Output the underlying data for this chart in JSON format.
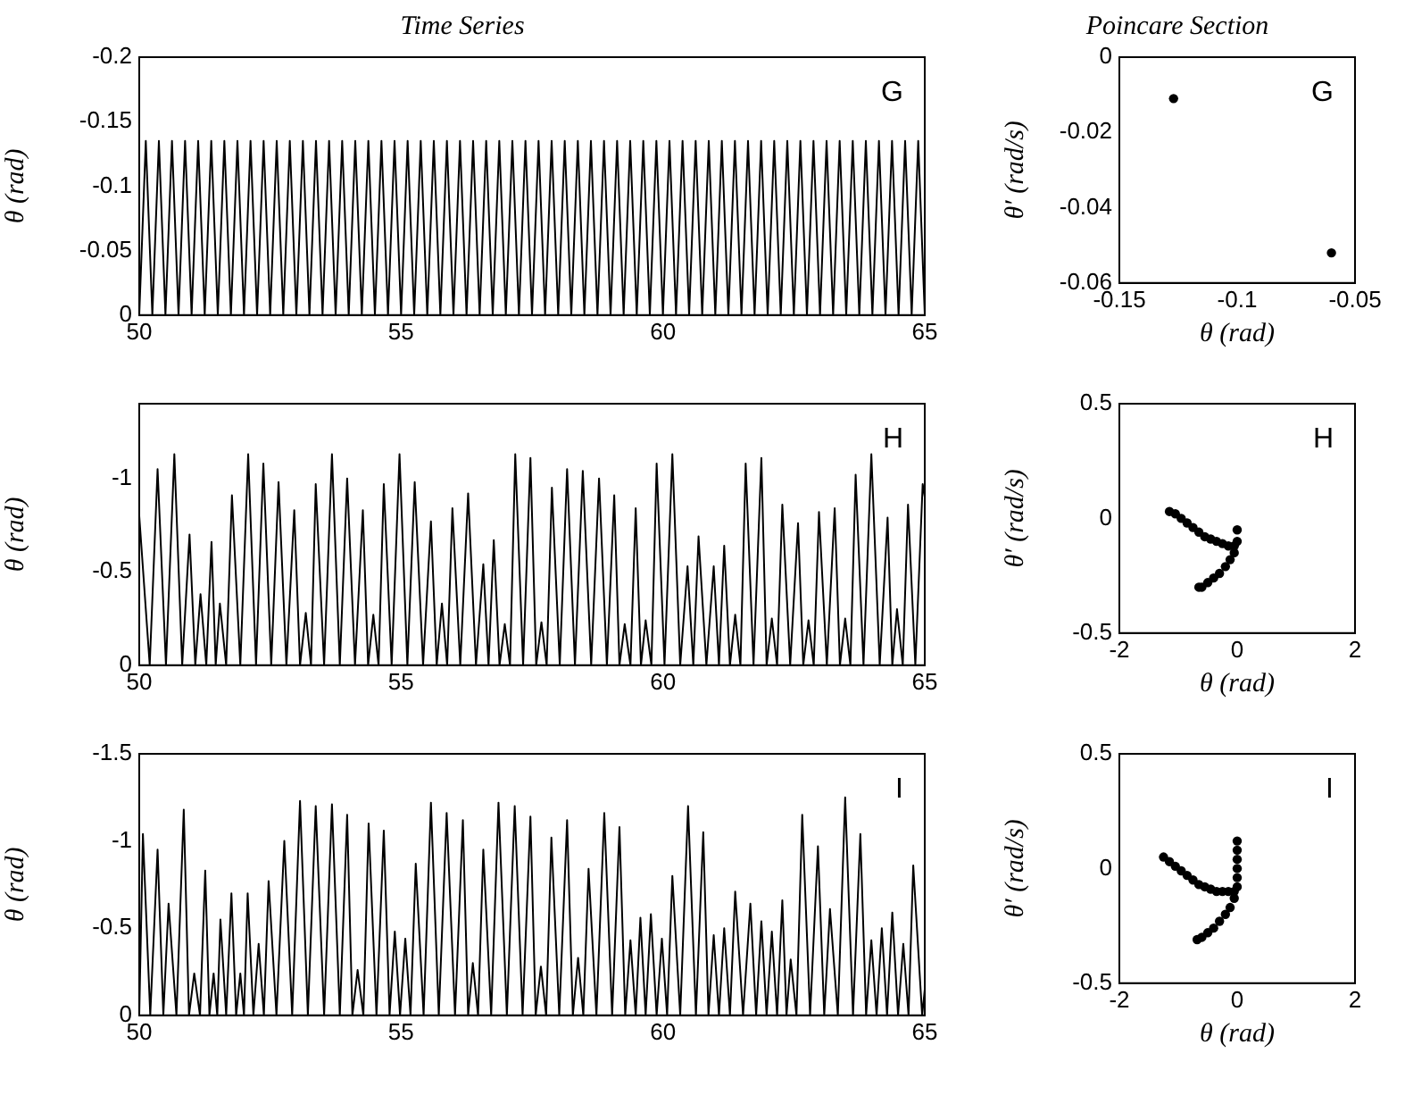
{
  "chart_data": [
    {
      "type": "line",
      "title": "Time Series",
      "ylabel": "θ (rad)",
      "annotations": [
        "G"
      ],
      "marker": "none",
      "line_style": "solid",
      "grid": false,
      "legend": false,
      "color": "#000000",
      "x": [
        50,
        50.125,
        50.25,
        50.375,
        50.5,
        50.625,
        50.75,
        50.875,
        51,
        51.125,
        51.25,
        51.375,
        51.5,
        51.625,
        51.75,
        51.875,
        52,
        52.125,
        52.25,
        52.375,
        52.5,
        52.625,
        52.75,
        52.875,
        53,
        53.125,
        53.25,
        53.375,
        53.5,
        53.625,
        53.75,
        53.875,
        54,
        54.125,
        54.25,
        54.375,
        54.5,
        54.625,
        54.75,
        54.875,
        55,
        55.125,
        55.25,
        55.375,
        55.5,
        55.625,
        55.75,
        55.875,
        56,
        56.125,
        56.25,
        56.375,
        56.5,
        56.625,
        56.75,
        56.875,
        57,
        57.125,
        57.25,
        57.375,
        57.5,
        57.625,
        57.75,
        57.875,
        58,
        58.125,
        58.25,
        58.375,
        58.5,
        58.625,
        58.75,
        58.875,
        59,
        59.125,
        59.25,
        59.375,
        59.5,
        59.625,
        59.75,
        59.875,
        60,
        60.125,
        60.25,
        60.375,
        60.5,
        60.625,
        60.75,
        60.875,
        61,
        61.125,
        61.25,
        61.375,
        61.5,
        61.625,
        61.75,
        61.875,
        62,
        62.125,
        62.25,
        62.375,
        62.5,
        62.625,
        62.75,
        62.875,
        63,
        63.125,
        63.25,
        63.375,
        63.5,
        63.625,
        63.75,
        63.875,
        64,
        64.125,
        64.25,
        64.375,
        64.5,
        64.625,
        64.75,
        64.875,
        65
      ],
      "values": [
        0,
        -0.135,
        0,
        -0.135,
        0,
        -0.135,
        0,
        -0.135,
        0,
        -0.135,
        0,
        -0.135,
        0,
        -0.135,
        0,
        -0.135,
        0,
        -0.135,
        0,
        -0.135,
        0,
        -0.135,
        0,
        -0.135,
        0,
        -0.135,
        0,
        -0.135,
        0,
        -0.135,
        0,
        -0.135,
        0,
        -0.135,
        0,
        -0.135,
        0,
        -0.135,
        0,
        -0.135,
        0,
        -0.135,
        0,
        -0.135,
        0,
        -0.135,
        0,
        -0.135,
        0,
        -0.135,
        0,
        -0.135,
        0,
        -0.135,
        0,
        -0.135,
        0,
        -0.135,
        0,
        -0.135,
        0,
        -0.135,
        0,
        -0.135,
        0,
        -0.135,
        0,
        -0.135,
        0,
        -0.135,
        0,
        -0.135,
        0,
        -0.135,
        0,
        -0.135,
        0,
        -0.135,
        0,
        -0.135,
        0,
        -0.135,
        0,
        -0.135,
        0,
        -0.135,
        0,
        -0.135,
        0,
        -0.135,
        0,
        -0.135,
        0,
        -0.135,
        0,
        -0.135,
        0,
        -0.135,
        0,
        -0.135,
        0,
        -0.135,
        0,
        -0.135,
        0,
        -0.135,
        0,
        -0.135,
        0,
        -0.135,
        0,
        -0.135,
        0,
        -0.135,
        0,
        -0.135,
        0,
        -0.135,
        0,
        -0.135,
        0
      ],
      "xlim": [
        50,
        65
      ],
      "xticks": [
        50,
        55,
        60,
        65
      ],
      "ylim": [
        0,
        -0.2
      ],
      "yticks": [
        -0.2,
        -0.15,
        -0.1,
        -0.05,
        0
      ]
    },
    {
      "type": "scatter",
      "title": "Poincare Section",
      "xlabel": "θ (rad)",
      "ylabel": "θ′ (rad/s)",
      "annotations": [
        "G"
      ],
      "marker": "circle",
      "grid": false,
      "legend": false,
      "color": "#000000",
      "x": [
        -0.127,
        -0.06
      ],
      "values": [
        -0.011,
        -0.052
      ],
      "xlim": [
        -0.15,
        -0.05
      ],
      "xticks": [
        -0.15,
        -0.1,
        -0.05
      ],
      "ylim": [
        -0.06,
        0
      ],
      "yticks": [
        -0.06,
        -0.04,
        -0.02,
        0
      ]
    },
    {
      "type": "line",
      "ylabel": "θ (rad)",
      "annotations": [
        "H"
      ],
      "marker": "none",
      "line_style": "solid",
      "grid": false,
      "legend": false,
      "color": "#000000",
      "x": [
        50,
        50.2,
        50.35,
        50.51,
        50.67,
        50.82,
        50.96,
        51.07,
        51.17,
        51.28,
        51.38,
        51.46,
        51.54,
        51.66,
        51.77,
        51.93,
        52.08,
        52.23,
        52.37,
        52.52,
        52.66,
        52.81,
        52.96,
        53.07,
        53.18,
        53.28,
        53.37,
        53.53,
        53.68,
        53.83,
        53.97,
        54.12,
        54.27,
        54.37,
        54.47,
        54.57,
        54.67,
        54.82,
        54.97,
        55.12,
        55.26,
        55.42,
        55.57,
        55.68,
        55.78,
        55.88,
        55.98,
        56.13,
        56.28,
        56.43,
        56.57,
        56.67,
        56.77,
        56.88,
        56.98,
        57.08,
        57.18,
        57.33,
        57.47,
        57.58,
        57.68,
        57.78,
        57.88,
        58.03,
        58.17,
        58.32,
        58.47,
        58.63,
        58.78,
        58.93,
        59.07,
        59.17,
        59.27,
        59.38,
        59.48,
        59.58,
        59.67,
        59.78,
        59.88,
        60.03,
        60.18,
        60.33,
        60.47,
        60.58,
        60.68,
        60.83,
        60.97,
        61.07,
        61.17,
        61.28,
        61.38,
        61.48,
        61.58,
        61.73,
        61.88,
        61.98,
        62.08,
        62.18,
        62.28,
        62.43,
        62.58,
        62.68,
        62.78,
        62.88,
        62.98,
        63.13,
        63.28,
        63.38,
        63.48,
        63.58,
        63.68,
        63.83,
        63.98,
        64.14,
        64.29,
        64.38,
        64.47,
        64.58,
        64.68,
        64.82,
        64.96,
        65
      ],
      "values": [
        -0.8,
        0,
        -1.05,
        0,
        -1.13,
        0,
        -0.7,
        0,
        -0.38,
        0,
        -0.66,
        0,
        -0.33,
        0,
        -0.91,
        0,
        -1.13,
        0,
        -1.08,
        0,
        -0.98,
        0,
        -0.83,
        0,
        -0.28,
        0,
        -0.97,
        0,
        -1.13,
        0,
        -1.0,
        0,
        -0.83,
        0,
        -0.27,
        0,
        -0.97,
        0,
        -1.13,
        0,
        -0.98,
        0,
        -0.77,
        0,
        -0.33,
        0,
        -0.84,
        0,
        -0.92,
        0,
        -0.54,
        0,
        -0.67,
        0,
        -0.22,
        0,
        -1.13,
        0,
        -1.11,
        0,
        -0.23,
        0,
        -0.95,
        0,
        -1.05,
        0,
        -1.04,
        0,
        -1.0,
        0,
        -0.91,
        0,
        -0.22,
        0,
        -0.84,
        0,
        -0.24,
        0,
        -1.08,
        0,
        -1.13,
        0,
        -0.53,
        0,
        -0.69,
        0,
        -0.53,
        0,
        -0.64,
        0,
        -0.27,
        0,
        -1.08,
        0,
        -1.11,
        0,
        -0.25,
        0,
        -0.86,
        0,
        -0.76,
        0,
        -0.24,
        0,
        -0.82,
        0,
        -0.84,
        0,
        -0.25,
        0,
        -1.02,
        0,
        -1.13,
        0,
        -0.79,
        0,
        -0.3,
        0,
        -0.86,
        0,
        -0.97,
        -0.9
      ],
      "xlim": [
        50,
        65
      ],
      "xticks": [
        50,
        55,
        60,
        65
      ],
      "ylim": [
        0,
        -1.4
      ],
      "yticks": [
        -1,
        -0.5,
        0
      ]
    },
    {
      "type": "scatter",
      "xlabel": "θ (rad)",
      "ylabel": "θ′ (rad/s)",
      "annotations": [
        "H"
      ],
      "marker": "circle",
      "grid": false,
      "legend": false,
      "color": "#000000",
      "x": [
        -1.15,
        -1.05,
        -0.95,
        -0.85,
        -0.75,
        -0.65,
        -0.55,
        -0.45,
        -0.35,
        -0.25,
        -0.15,
        -0.05,
        0,
        0,
        -0.05,
        -0.12,
        -0.2,
        -0.3,
        -0.4,
        -0.5,
        -0.6,
        -0.65
      ],
      "values": [
        0.03,
        0.02,
        0,
        -0.02,
        -0.04,
        -0.06,
        -0.08,
        -0.09,
        -0.1,
        -0.11,
        -0.12,
        -0.12,
        -0.1,
        -0.05,
        -0.15,
        -0.18,
        -0.21,
        -0.24,
        -0.26,
        -0.28,
        -0.3,
        -0.3
      ],
      "xlim": [
        -2,
        2
      ],
      "xticks": [
        -2,
        0,
        2
      ],
      "ylim": [
        -0.5,
        0.5
      ],
      "yticks": [
        -0.5,
        0,
        0.5
      ]
    },
    {
      "type": "line",
      "ylabel": "θ (rad)",
      "annotations": [
        "I"
      ],
      "marker": "none",
      "line_style": "solid",
      "grid": false,
      "legend": false,
      "color": "#000000",
      "x": [
        50,
        50.07,
        50.21,
        50.35,
        50.46,
        50.56,
        50.71,
        50.85,
        50.95,
        51.05,
        51.16,
        51.26,
        51.34,
        51.42,
        51.49,
        51.55,
        51.66,
        51.76,
        51.85,
        51.93,
        52.0,
        52.07,
        52.18,
        52.28,
        52.38,
        52.47,
        52.62,
        52.77,
        52.92,
        53.07,
        53.22,
        53.37,
        53.53,
        53.68,
        53.83,
        53.97,
        54.07,
        54.17,
        54.28,
        54.38,
        54.53,
        54.67,
        54.78,
        54.88,
        54.98,
        55.08,
        55.18,
        55.28,
        55.43,
        55.57,
        55.72,
        55.87,
        56.03,
        56.18,
        56.28,
        56.37,
        56.47,
        56.57,
        56.72,
        56.86,
        57.02,
        57.17,
        57.32,
        57.47,
        57.57,
        57.67,
        57.77,
        57.87,
        58.02,
        58.17,
        58.28,
        58.38,
        58.48,
        58.58,
        58.73,
        58.88,
        59.03,
        59.17,
        59.28,
        59.38,
        59.48,
        59.57,
        59.67,
        59.77,
        59.88,
        59.98,
        60.08,
        60.18,
        60.33,
        60.48,
        60.63,
        60.77,
        60.87,
        60.97,
        61.07,
        61.17,
        61.28,
        61.38,
        61.53,
        61.67,
        61.78,
        61.88,
        61.98,
        62.08,
        62.18,
        62.28,
        62.36,
        62.44,
        62.55,
        62.66,
        62.81,
        62.96,
        63.08,
        63.19,
        63.34,
        63.48,
        63.63,
        63.77,
        63.88,
        63.98,
        64.08,
        64.18,
        64.28,
        64.38,
        64.49,
        64.59,
        64.69,
        64.78,
        64.95,
        65
      ],
      "values": [
        0,
        -1.04,
        0,
        -0.95,
        0,
        -0.64,
        0,
        -1.18,
        0,
        -0.24,
        0,
        -0.83,
        0,
        -0.24,
        0,
        -0.55,
        0,
        -0.7,
        0,
        -0.24,
        0,
        -0.7,
        0,
        -0.41,
        0,
        -0.77,
        0,
        -1.0,
        0,
        -1.23,
        0,
        -1.2,
        0,
        -1.21,
        0,
        -1.15,
        0,
        -0.26,
        0,
        -1.1,
        0,
        -1.06,
        0,
        -0.48,
        0,
        -0.44,
        0,
        -0.87,
        0,
        -1.22,
        0,
        -1.16,
        0,
        -1.12,
        0,
        -0.3,
        0,
        -0.95,
        0,
        -1.22,
        0,
        -1.2,
        0,
        -1.14,
        0,
        -0.28,
        0,
        -1.02,
        0,
        -1.12,
        0,
        -0.33,
        0,
        -0.84,
        0,
        -1.16,
        0,
        -1.08,
        0,
        -0.43,
        0,
        -0.56,
        0,
        -0.58,
        0,
        -0.44,
        0,
        -0.8,
        0,
        -1.2,
        0,
        -1.05,
        0,
        -0.46,
        0,
        -0.5,
        0,
        -0.71,
        0,
        -0.64,
        0,
        -0.54,
        0,
        -0.48,
        0,
        -0.66,
        0,
        -0.32,
        0,
        -1.15,
        0,
        -0.97,
        0,
        -0.61,
        0,
        -1.25,
        0,
        -1.04,
        0,
        -0.43,
        0,
        -0.5,
        0,
        -0.59,
        0,
        -0.41,
        0,
        -0.86,
        0,
        -0.15
      ],
      "xlim": [
        50,
        65
      ],
      "xticks": [
        50,
        55,
        60,
        65
      ],
      "ylim": [
        0,
        -1.5
      ],
      "yticks": [
        -1.5,
        -1,
        -0.5,
        0
      ]
    },
    {
      "type": "scatter",
      "xlabel": "θ (rad)",
      "ylabel": "θ′ (rad/s)",
      "annotations": [
        "I"
      ],
      "marker": "circle",
      "grid": false,
      "legend": false,
      "color": "#000000",
      "x": [
        -1.25,
        -1.15,
        -1.05,
        -0.95,
        -0.85,
        -0.75,
        -0.65,
        -0.55,
        -0.45,
        -0.35,
        -0.25,
        -0.15,
        -0.05,
        0,
        0,
        0,
        0,
        0,
        0,
        -0.05,
        -0.12,
        -0.2,
        -0.3,
        -0.4,
        -0.5,
        -0.6,
        -0.68
      ],
      "values": [
        0.05,
        0.03,
        0.01,
        -0.01,
        -0.03,
        -0.05,
        -0.07,
        -0.08,
        -0.09,
        -0.1,
        -0.1,
        -0.1,
        -0.1,
        0.12,
        0.08,
        0.04,
        0,
        -0.04,
        -0.08,
        -0.13,
        -0.17,
        -0.2,
        -0.23,
        -0.26,
        -0.28,
        -0.3,
        -0.31
      ],
      "xlim": [
        -2,
        2
      ],
      "xticks": [
        -2,
        0,
        2
      ],
      "ylim": [
        -0.5,
        0.5
      ],
      "yticks": [
        -0.5,
        0,
        0.5
      ]
    }
  ]
}
